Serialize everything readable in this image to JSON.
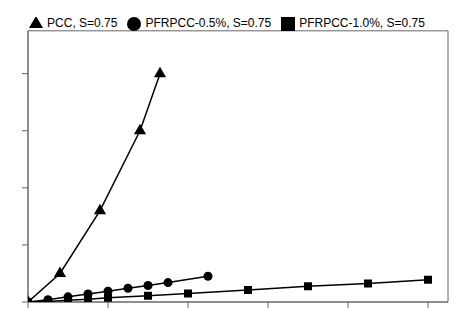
{
  "chart_data": {
    "type": "line",
    "series": [
      {
        "name": "PFRPCC-0.5%, S=0.75",
        "marker": "circle",
        "x": [
          0,
          0.05,
          0.1,
          0.15,
          0.2,
          0.25,
          0.3,
          0.35,
          0.45
        ],
        "values": [
          0.0,
          0.008,
          0.018,
          0.028,
          0.038,
          0.048,
          0.058,
          0.068,
          0.09
        ]
      },
      {
        "name": "PFRPCC-1.0%, S=0.75",
        "marker": "square",
        "x": [
          0,
          0.05,
          0.1,
          0.15,
          0.2,
          0.3,
          0.4,
          0.55,
          0.7,
          0.85,
          1.0
        ],
        "values": [
          0.0,
          0.002,
          0.006,
          0.01,
          0.015,
          0.022,
          0.03,
          0.042,
          0.055,
          0.065,
          0.078
        ]
      },
      {
        "name": "PCC, S=0.75",
        "marker": "triangle",
        "x": [
          0,
          0.08,
          0.18,
          0.28,
          0.33
        ],
        "values": [
          0.0,
          0.1,
          0.32,
          0.6,
          0.8
        ]
      }
    ],
    "color": "#000000",
    "xlim": [
      0,
      1.05
    ],
    "ylim": [
      0,
      0.95
    ],
    "xticks": [
      0,
      0.2,
      0.4,
      0.6,
      0.8,
      1.0
    ],
    "yticks": [
      0,
      0.2,
      0.4,
      0.6,
      0.8
    ],
    "tick_labels": false,
    "legend": "top",
    "grid": false
  }
}
